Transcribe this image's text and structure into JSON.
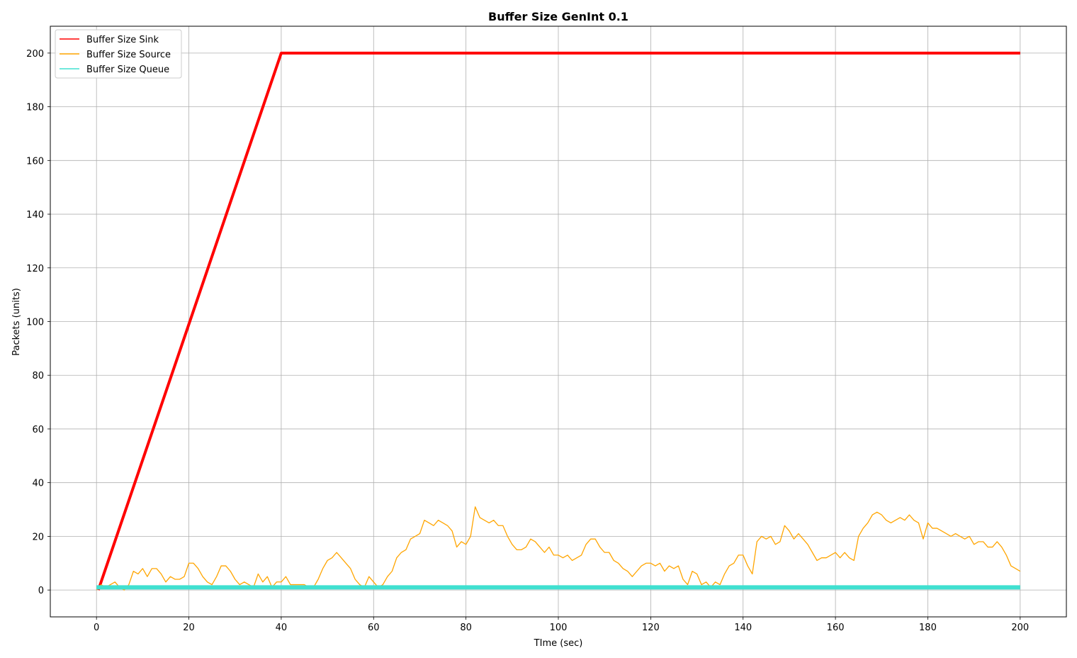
{
  "chart_data": {
    "type": "line",
    "title": "Buffer Size GenInt 0.1",
    "xlabel": "TIme (sec)",
    "ylabel": "Packets (units)",
    "xlim": [
      -10,
      210
    ],
    "ylim": [
      -10,
      210
    ],
    "xticks": [
      0,
      20,
      40,
      60,
      80,
      100,
      120,
      140,
      160,
      180,
      200
    ],
    "yticks": [
      0,
      20,
      40,
      60,
      80,
      100,
      120,
      140,
      160,
      180,
      200
    ],
    "grid": true,
    "legend_position": "upper-left",
    "series": [
      {
        "name": "Buffer Size Sink",
        "color": "#ff0000",
        "x": [
          0.4,
          40,
          200
        ],
        "y": [
          0,
          200,
          200
        ]
      },
      {
        "name": "Buffer Size Source",
        "color": "#ffa500",
        "x": [
          0,
          1,
          2,
          3,
          4,
          5,
          6,
          7,
          8,
          9,
          10,
          11,
          12,
          13,
          14,
          15,
          16,
          17,
          18,
          19,
          20,
          21,
          22,
          23,
          24,
          25,
          26,
          27,
          28,
          29,
          30,
          31,
          32,
          33,
          34,
          35,
          36,
          37,
          38,
          39,
          40,
          41,
          42,
          43,
          44,
          45,
          46,
          47,
          48,
          49,
          50,
          51,
          52,
          53,
          54,
          55,
          56,
          57,
          58,
          59,
          60,
          61,
          62,
          63,
          64,
          65,
          66,
          67,
          68,
          69,
          70,
          71,
          72,
          73,
          74,
          75,
          76,
          77,
          78,
          79,
          80,
          81,
          82,
          83,
          84,
          85,
          86,
          87,
          88,
          89,
          90,
          91,
          92,
          93,
          94,
          95,
          96,
          97,
          98,
          99,
          100,
          101,
          102,
          103,
          104,
          105,
          106,
          107,
          108,
          109,
          110,
          111,
          112,
          113,
          114,
          115,
          116,
          117,
          118,
          119,
          120,
          121,
          122,
          123,
          124,
          125,
          126,
          127,
          128,
          129,
          130,
          131,
          132,
          133,
          134,
          135,
          136,
          137,
          138,
          139,
          140,
          141,
          142,
          143,
          144,
          145,
          146,
          147,
          148,
          149,
          150,
          151,
          152,
          153,
          154,
          155,
          156,
          157,
          158,
          159,
          160,
          161,
          162,
          163,
          164,
          165,
          166,
          167,
          168,
          169,
          170,
          171,
          172,
          173,
          174,
          175,
          176,
          177,
          178,
          179,
          180,
          181,
          182,
          183,
          184,
          185,
          186,
          187,
          188,
          189,
          190,
          191,
          192,
          193,
          194,
          195,
          196,
          197,
          198,
          199,
          200
        ],
        "y": [
          0,
          2,
          1,
          2,
          3,
          1,
          0,
          2,
          7,
          6,
          8,
          5,
          8,
          8,
          6,
          3,
          5,
          4,
          4,
          5,
          10,
          10,
          8,
          5,
          3,
          2,
          5,
          9,
          9,
          7,
          4,
          2,
          3,
          2,
          1,
          6,
          3,
          5,
          1,
          3,
          3,
          5,
          2,
          2,
          2,
          2,
          1,
          1,
          4,
          8,
          11,
          12,
          14,
          12,
          10,
          8,
          4,
          2,
          1,
          5,
          3,
          1,
          2,
          5,
          7,
          12,
          14,
          15,
          19,
          20,
          21,
          26,
          25,
          24,
          26,
          25,
          24,
          22,
          16,
          18,
          17,
          20,
          31,
          27,
          26,
          25,
          26,
          24,
          24,
          20,
          17,
          15,
          15,
          16,
          19,
          18,
          16,
          14,
          16,
          13,
          13,
          12,
          13,
          11,
          12,
          13,
          17,
          19,
          19,
          16,
          14,
          14,
          11,
          10,
          8,
          7,
          5,
          7,
          9,
          10,
          10,
          9,
          10,
          7,
          9,
          8,
          9,
          4,
          2,
          7,
          6,
          2,
          3,
          1,
          3,
          2,
          6,
          9,
          10,
          13,
          13,
          9,
          6,
          18,
          20,
          19,
          20,
          17,
          18,
          24,
          22,
          19,
          21,
          19,
          17,
          14,
          11,
          12,
          12,
          13,
          14,
          12,
          14,
          12,
          11,
          20,
          23,
          25,
          28,
          29,
          28,
          26,
          25,
          26,
          27,
          26,
          28,
          26,
          25,
          19,
          25,
          23,
          23,
          22,
          21,
          20,
          21,
          20,
          19,
          20,
          17,
          18,
          18,
          16,
          16,
          18,
          16,
          13,
          9,
          8,
          7
        ]
      },
      {
        "name": "Buffer Size Queue",
        "color": "#40e0d0",
        "x": [
          0,
          200
        ],
        "y": [
          1,
          1
        ]
      }
    ]
  }
}
